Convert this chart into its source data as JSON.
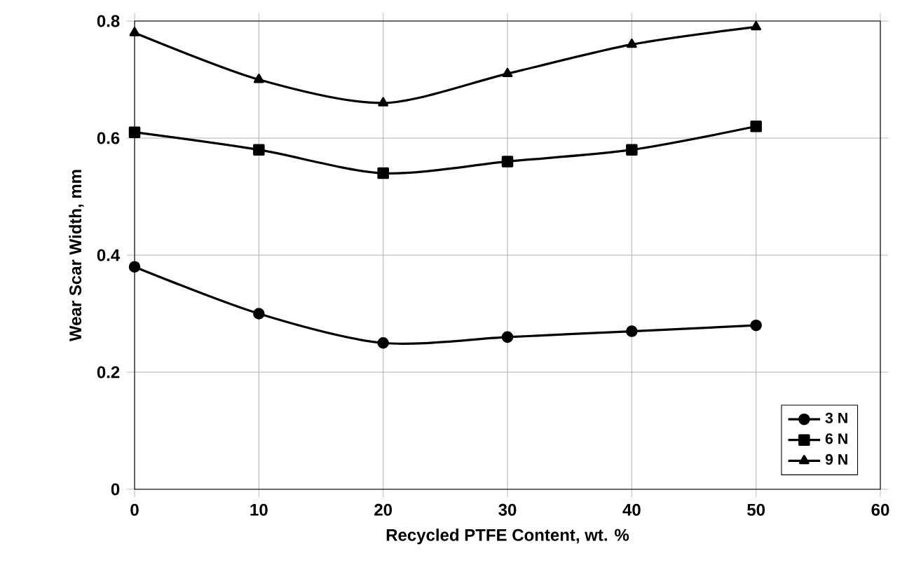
{
  "chart_data": {
    "type": "line",
    "xlabel": "Recycled PTFE Content, wt. %",
    "ylabel": "Wear Scar Width, mm",
    "x": [
      0,
      10,
      20,
      30,
      40,
      50
    ],
    "series": [
      {
        "name": "3 N",
        "color": "#000000",
        "marker": "circle",
        "values": [
          0.38,
          0.3,
          0.25,
          0.26,
          0.27,
          0.28
        ]
      },
      {
        "name": "6 N",
        "color": "#000000",
        "marker": "square",
        "values": [
          0.61,
          0.58,
          0.54,
          0.56,
          0.58,
          0.62
        ]
      },
      {
        "name": "9 N",
        "color": "#000000",
        "marker": "triangle",
        "values": [
          0.78,
          0.7,
          0.66,
          0.71,
          0.76,
          0.79
        ]
      }
    ],
    "xlim": [
      0,
      60
    ],
    "xticks": [
      0,
      10,
      20,
      30,
      40,
      50,
      60
    ],
    "ylim": [
      0,
      0.8
    ],
    "yticks": [
      0,
      0.2,
      0.4,
      0.6,
      0.8
    ],
    "grid": true,
    "legend": "bottom right",
    "line_style": "solid"
  }
}
